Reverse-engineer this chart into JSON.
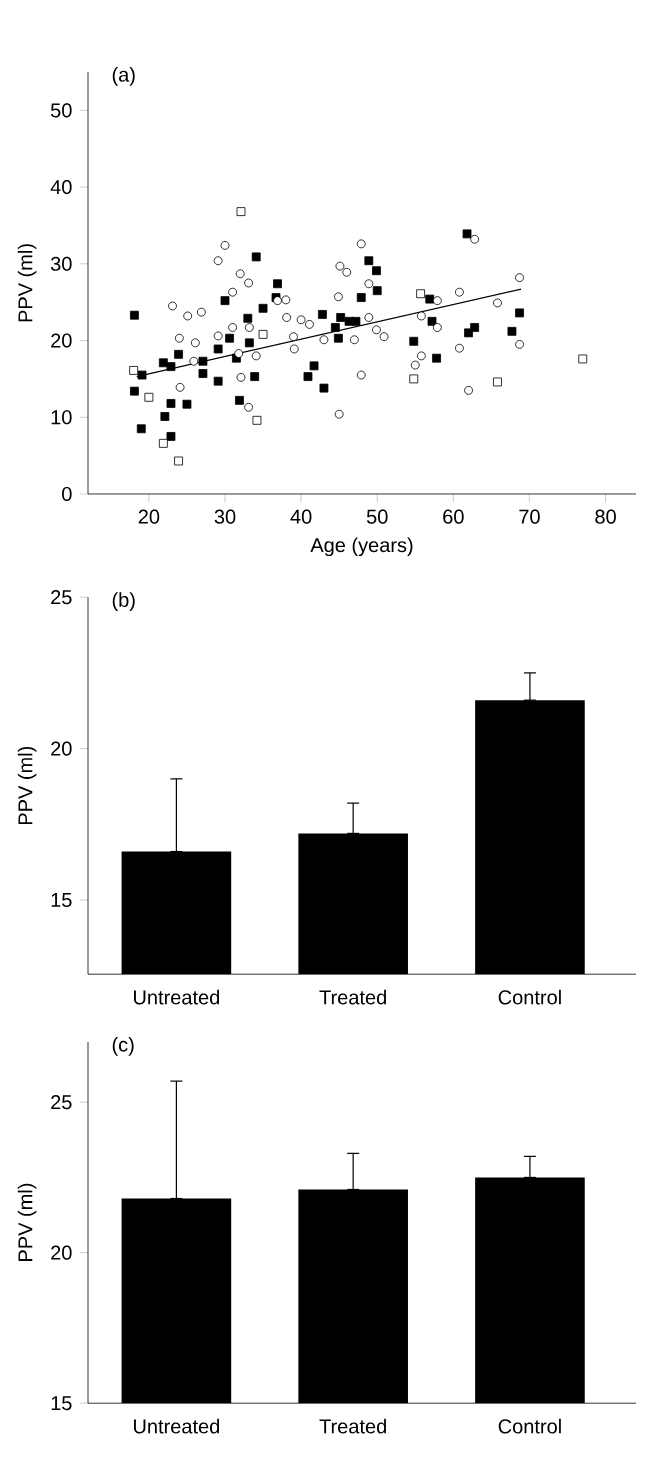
{
  "chart_data": [
    {
      "type": "scatter",
      "title": "(a)",
      "xlabel": "Age (years)",
      "ylabel": "PPV (ml)",
      "xlim": [
        12,
        84
      ],
      "ylim": [
        0,
        55
      ],
      "xticks": [
        20,
        30,
        40,
        50,
        60,
        70,
        80
      ],
      "yticks": [
        0,
        10,
        20,
        30,
        40,
        50
      ],
      "series": [
        {
          "color": "#000000",
          "marker": "square",
          "x": [
            18.1,
            19.1,
            18.1,
            19,
            21.9,
            22.9,
            23.9,
            22.1,
            22.9,
            25,
            22.9,
            34.1,
            30,
            27.1,
            29.1,
            29.1,
            30.6,
            31.9,
            33,
            33.9,
            35,
            36.7,
            36.9,
            40.9,
            41.7,
            43,
            42.8,
            44.5,
            46.3,
            48.9,
            47.9,
            27.1,
            31.5,
            33.2,
            61.8,
            49.9,
            50,
            45.2,
            47.2,
            44.9,
            56.9,
            57.2,
            54.8,
            57.8,
            62,
            62.8,
            67.7,
            68.7
          ],
          "values": [
            23.3,
            15.5,
            13.4,
            8.5,
            17.1,
            16.6,
            18.2,
            10.1,
            11.8,
            11.7,
            7.5,
            30.9,
            25.2,
            15.7,
            14.7,
            18.9,
            20.3,
            12.2,
            22.9,
            15.3,
            24.2,
            25.6,
            27.4,
            15.3,
            16.7,
            13.8,
            23.4,
            21.7,
            22.5,
            30.4,
            25.6,
            17.3,
            17.7,
            19.7,
            33.9,
            29.1,
            26.5,
            23,
            22.5,
            20.3,
            25.4,
            22.5,
            19.9,
            17.7,
            21,
            21.7,
            21.2,
            23.6
          ]
        },
        {
          "color": "#ffffff",
          "marker": "circle",
          "x": [
            30,
            29.1,
            32,
            33.1,
            31,
            23.1,
            25.1,
            26.9,
            24,
            26.1,
            25.9,
            24.1,
            29.1,
            31,
            33.2,
            31.8,
            34.1,
            32.1,
            33.1,
            36.9,
            38,
            38.1,
            40,
            39.1,
            39,
            41.1,
            43,
            45.1,
            46,
            44.9,
            47,
            47.9,
            47.9,
            45,
            48.9,
            48.9,
            49.9,
            50.9,
            55.8,
            57.9,
            57.9,
            55.8,
            55,
            60.8,
            62.8,
            60.8,
            62,
            65.8,
            68.7,
            68.7
          ],
          "values": [
            32.4,
            30.4,
            28.7,
            27.5,
            26.3,
            24.5,
            23.2,
            23.7,
            20.3,
            19.7,
            17.3,
            13.9,
            20.6,
            21.7,
            21.7,
            18.3,
            18,
            15.2,
            11.3,
            25.2,
            25.3,
            23,
            22.7,
            18.9,
            20.5,
            22.1,
            20.1,
            29.7,
            28.9,
            25.7,
            20.1,
            15.5,
            32.6,
            10.4,
            23,
            27.4,
            21.4,
            20.5,
            23.2,
            25.2,
            21.7,
            18,
            16.8,
            26.3,
            33.2,
            19,
            13.5,
            24.9,
            28.2,
            19.5
          ]
        },
        {
          "color": "#ffffff",
          "marker": "square",
          "x": [
            32.1,
            18,
            20,
            21.9,
            23.9,
            34.2,
            35,
            55.7,
            54.8,
            65.8,
            77
          ],
          "values": [
            36.8,
            16.1,
            12.6,
            6.6,
            4.3,
            9.6,
            20.8,
            26.1,
            15,
            14.6,
            17.6
          ]
        },
        {
          "type": "line",
          "color": "#000000",
          "marker": "none",
          "x": [
            18.4,
            68.9
          ],
          "values": [
            15.3,
            26.7
          ]
        }
      ]
    },
    {
      "type": "bar",
      "title": "(b)",
      "ylabel": "PPV (ml)",
      "categories": [
        "Untreated",
        "Treated",
        "Control"
      ],
      "values": [
        16.6,
        17.2,
        21.6
      ],
      "errors": [
        [
          16.6,
          19.0
        ],
        [
          17.2,
          18.2
        ],
        [
          21.6,
          22.5
        ]
      ],
      "color": "#000000",
      "ylim": [
        12.55,
        25
      ],
      "yticks": [
        15,
        20,
        25
      ]
    },
    {
      "type": "bar",
      "title": "(c)",
      "ylabel": "PPV (ml)",
      "categories": [
        "Untreated",
        "Treated",
        "Control"
      ],
      "values": [
        21.8,
        22.1,
        22.5
      ],
      "errors": [
        [
          21.8,
          25.7
        ],
        [
          22.1,
          23.3
        ],
        [
          22.5,
          23.2
        ]
      ],
      "color": "#000000",
      "ylim": [
        15,
        27
      ],
      "yticks": [
        15,
        20,
        25
      ]
    }
  ]
}
